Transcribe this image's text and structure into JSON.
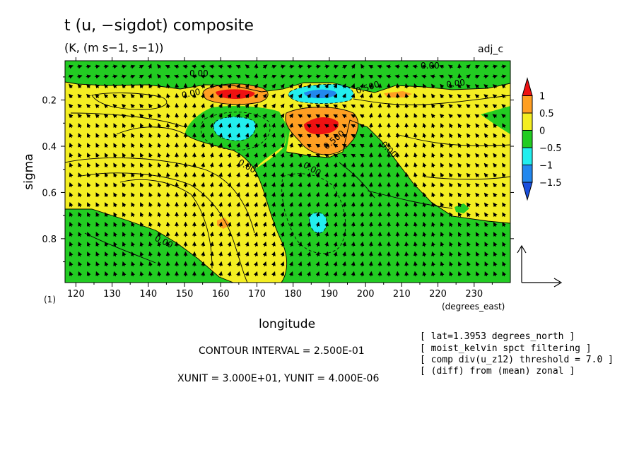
{
  "chart_data": {
    "type": "heatmap",
    "title": "t (u, −sigdot) composite",
    "subtitle": "(K, (m s−1, s−1))",
    "run_name": "adj_c",
    "xlabel": "longitude",
    "xunits": "(degrees_east)",
    "ylabel": "sigma",
    "yunits": "(1)",
    "xlim": [
      117,
      240
    ],
    "ylim": [
      0.99,
      0.03
    ],
    "x_ticks": [
      120,
      130,
      140,
      150,
      160,
      170,
      180,
      190,
      200,
      210,
      220,
      230
    ],
    "x_tick_labels": [
      "120",
      "130",
      "140",
      "150",
      "160",
      "170",
      "180",
      "190",
      "200",
      "210",
      "220",
      "230"
    ],
    "y_ticks": [
      0.2,
      0.4,
      0.6,
      0.8
    ],
    "y_tick_labels": [
      "0.2",
      "0.4",
      "0.6",
      "0.8"
    ],
    "colorbar": {
      "levels": [
        -1.5,
        -1,
        -0.5,
        0,
        0.5,
        1
      ],
      "labels": [
        "1",
        "0.5",
        "0",
        "−0.5",
        "−1",
        "−1.5"
      ],
      "colors": [
        "#ee1111",
        "#ff9f22",
        "#f4ee22",
        "#22cc22",
        "#22eeee",
        "#2288ee",
        "#1a4fdd"
      ]
    },
    "contour_labels": [
      "0.00",
      "0.00",
      "0.00",
      "0.00",
      "0.00",
      "0.00",
      "0.00",
      "0.500",
      "0.500",
      "0.00",
      "0.00"
    ],
    "features": [
      {
        "kind": "warm",
        "lon": 166,
        "sigma": 0.17,
        "value": 1.0
      },
      {
        "kind": "cold",
        "lon": 192,
        "sigma": 0.15,
        "value": -1.0
      },
      {
        "kind": "warm",
        "lon": 188,
        "sigma": 0.29,
        "value": 1.0
      },
      {
        "kind": "cold",
        "lon": 166,
        "sigma": 0.33,
        "value": -1.0
      },
      {
        "kind": "cold",
        "lon": 185,
        "sigma": 0.74,
        "value": -1.0
      },
      {
        "kind": "warm",
        "lon": 162,
        "sigma": 0.74,
        "value": 0.5
      }
    ],
    "vector_reference": {
      "xunit": "3.000E+01",
      "yunit": "4.000E-06"
    },
    "contour_interval": "2.500E-01"
  },
  "footer": {
    "contour_interval": "CONTOUR INTERVAL = 2.500E-01",
    "units": "XUNIT = 3.000E+01, YUNIT = 4.000E-06"
  },
  "notes": [
    "[ lat=1.3953 degrees_north ]",
    "[ moist_kelvin spct filtering ]",
    "[ comp div(u_z12) threshold = 7.0 ]",
    "[ (diff) from (mean) zonal ]"
  ]
}
